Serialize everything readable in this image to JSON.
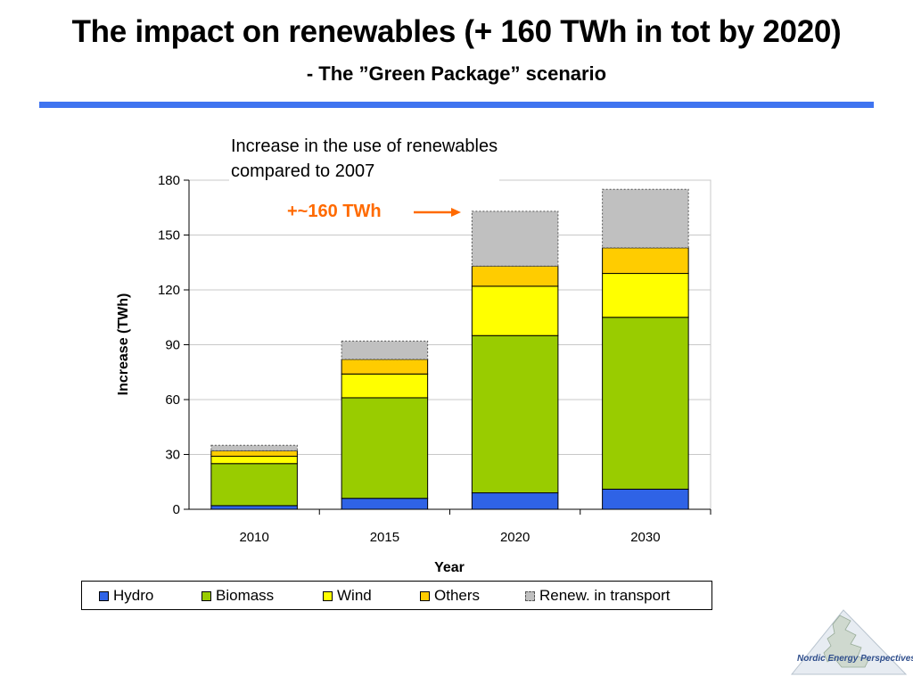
{
  "slide": {
    "title": "The impact on renewables (+ 160 TWh in tot by 2020)",
    "subtitle": "- The ”Green Package” scenario",
    "annotation_line1": "Increase in the use of renewables",
    "annotation_line2": "compared to 2007",
    "callout": "+~160 TWh",
    "logo_text": "Nordic Energy Perspectives",
    "rule_color": "#3f74f0",
    "callout_color": "#ff6a00"
  },
  "chart_data": {
    "type": "bar",
    "stacked": true,
    "categories": [
      "2010",
      "2015",
      "2020",
      "2030"
    ],
    "series": [
      {
        "name": "Hydro",
        "color": "#2f63e6",
        "values": [
          2,
          6,
          9,
          11
        ]
      },
      {
        "name": "Biomass",
        "color": "#99cc00",
        "values": [
          23,
          55,
          86,
          94
        ]
      },
      {
        "name": "Wind",
        "color": "#ffff00",
        "values": [
          4,
          13,
          27,
          24
        ]
      },
      {
        "name": "Others",
        "color": "#ffcc00",
        "values": [
          3,
          8,
          11,
          14
        ]
      },
      {
        "name": "Renew. in transport",
        "color": "#c0c0c0",
        "dashed": true,
        "values": [
          3,
          10,
          30,
          32
        ]
      }
    ],
    "xlabel": "Year",
    "ylabel": "Increase (TWh)",
    "ylim": [
      0,
      180
    ],
    "yticks": [
      0,
      30,
      60,
      90,
      120,
      150,
      180
    ],
    "grid": true,
    "legend": "bottom"
  }
}
